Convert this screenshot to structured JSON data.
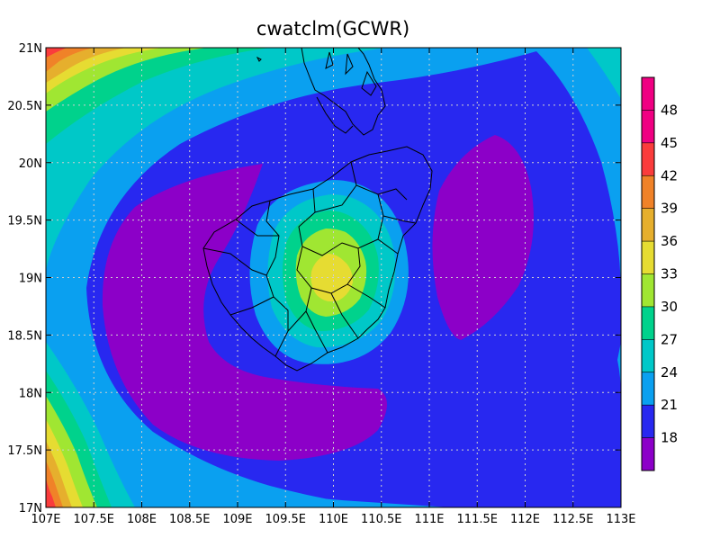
{
  "chart_data": {
    "type": "heatmap",
    "title": "cwatclm(GCWR)",
    "xlabel": "",
    "ylabel": "",
    "xlim": [
      107,
      113
    ],
    "ylim": [
      17,
      21
    ],
    "x_ticks": [
      "107E",
      "107.5E",
      "108E",
      "108.5E",
      "109E",
      "109.5E",
      "110E",
      "110.5E",
      "111E",
      "111.5E",
      "112E",
      "112.5E",
      "113E"
    ],
    "x_tick_values": [
      107,
      107.5,
      108,
      108.5,
      109,
      109.5,
      110,
      110.5,
      111,
      111.5,
      112,
      112.5,
      113
    ],
    "y_ticks": [
      "17N",
      "17.5N",
      "18N",
      "18.5N",
      "19N",
      "19.5N",
      "20N",
      "20.5N",
      "21N"
    ],
    "y_tick_values": [
      17,
      17.5,
      18,
      18.5,
      19,
      19.5,
      20,
      20.5,
      21
    ],
    "grid": true,
    "colorbar": {
      "placement": "right",
      "levels": [
        18,
        21,
        24,
        27,
        30,
        33,
        36,
        39,
        42,
        45,
        48
      ],
      "labels": [
        "18",
        "21",
        "24",
        "27",
        "30",
        "33",
        "36",
        "39",
        "42",
        "45",
        "48"
      ],
      "colors": [
        "#8c00c8",
        "#2828f0",
        "#0aa0f0",
        "#00c8c8",
        "#00d28c",
        "#a0e632",
        "#e6dc32",
        "#e6af2d",
        "#f08228",
        "#fa3c3c",
        "#f00082"
      ]
    },
    "field_features": [
      {
        "kind": "max",
        "lon": 110.0,
        "lat": 19.0,
        "value": 36
      },
      {
        "kind": "min",
        "lon": 108.2,
        "lat": 18.7,
        "value": 17
      },
      {
        "kind": "min",
        "lon": 108.9,
        "lat": 17.7,
        "value": 18
      },
      {
        "kind": "min",
        "lon": 111.6,
        "lat": 19.3,
        "value": 18
      },
      {
        "kind": "corner",
        "lon": 107.0,
        "lat": 21.0,
        "value": 44
      },
      {
        "kind": "corner",
        "lon": 107.0,
        "lat": 17.0,
        "value": 44
      }
    ]
  }
}
